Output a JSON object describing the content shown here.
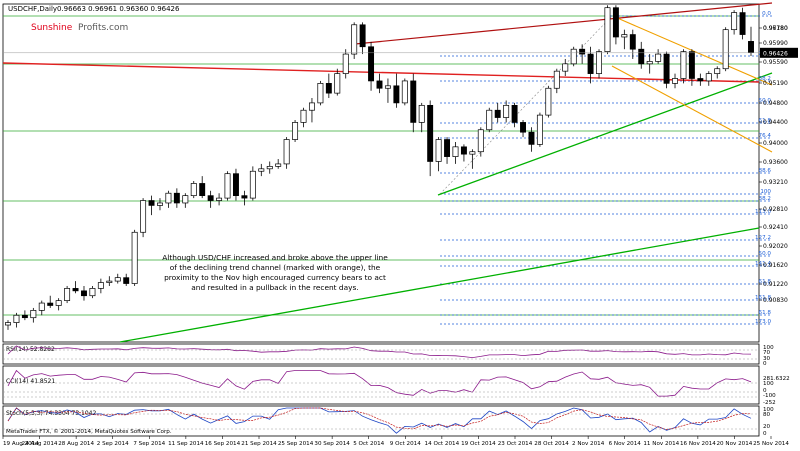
{
  "header": {
    "symbol": "USDCHF,Daily",
    "ohlc": "0.96663 0.96961 0.96360 0.96426",
    "brand_sunshine": "Sunshine",
    "brand_profits": "Profits.com"
  },
  "annotation": [
    "Although USD/CHF increased and broke above the upper line",
    "of the declining trend channel (marked with orange), the",
    "proximity to the Nov high encouraged currency bears to act",
    "and resulted in a pullback in the recent days."
  ],
  "footer": "MetaTrader FTX, © 2001-2014, MetaQuotes Software Corp.",
  "colors": {
    "bull": "#ffffff",
    "bear": "#000000",
    "support_green": "#00b000",
    "resistance_red": "#e02020",
    "upper_channel": "#b01010",
    "orange_channel": "#f0a000",
    "fib_blue": "#1f5fd6",
    "horizontal_green": "#33aa33",
    "indicator_line": "#8b1a8b",
    "current_price_bg": "#000000"
  },
  "chart_data": {
    "type": "candlestick",
    "price_axis": {
      "ylim": [
        0.9069,
        0.9775
      ],
      "ticks": [
        "0.97180",
        "0.96780",
        "0.96426",
        "0.95990",
        "0.95590",
        "0.95190",
        "0.94800",
        "0.94400",
        "0.94000",
        "0.93600",
        "0.93210",
        "0.92810",
        "0.92410",
        "0.92020",
        "0.91620",
        "0.91220",
        "0.90830"
      ],
      "current_price": "0.96426"
    },
    "x_labels": [
      "19 Aug 2014",
      "24 Aug 2014",
      "28 Aug 2014",
      "2 Sep 2014",
      "7 Sep 2014",
      "11 Sep 2014",
      "16 Sep 2014",
      "21 Sep 2014",
      "25 Sep 2014",
      "30 Sep 2014",
      "5 Oct 2014",
      "9 Oct 2014",
      "14 Oct 2014",
      "19 Oct 2014",
      "23 Oct 2014",
      "28 Oct 2014",
      "2 Nov 2014",
      "6 Nov 2014",
      "11 Nov 2014",
      "16 Nov 2014",
      "20 Nov 2014",
      "25 Nov 2014"
    ],
    "candles": [
      {
        "o": 0.9085,
        "h": 0.9095,
        "l": 0.9075,
        "c": 0.909
      },
      {
        "o": 0.909,
        "h": 0.911,
        "l": 0.908,
        "c": 0.9105
      },
      {
        "o": 0.9105,
        "h": 0.9115,
        "l": 0.9095,
        "c": 0.91
      },
      {
        "o": 0.91,
        "h": 0.912,
        "l": 0.909,
        "c": 0.9115
      },
      {
        "o": 0.9115,
        "h": 0.9135,
        "l": 0.9105,
        "c": 0.913
      },
      {
        "o": 0.913,
        "h": 0.9145,
        "l": 0.912,
        "c": 0.9125
      },
      {
        "o": 0.9125,
        "h": 0.914,
        "l": 0.9115,
        "c": 0.9135
      },
      {
        "o": 0.9135,
        "h": 0.9165,
        "l": 0.913,
        "c": 0.916
      },
      {
        "o": 0.916,
        "h": 0.9175,
        "l": 0.915,
        "c": 0.9155
      },
      {
        "o": 0.9155,
        "h": 0.9165,
        "l": 0.9135,
        "c": 0.9145
      },
      {
        "o": 0.9145,
        "h": 0.9165,
        "l": 0.914,
        "c": 0.916
      },
      {
        "o": 0.916,
        "h": 0.918,
        "l": 0.915,
        "c": 0.9172
      },
      {
        "o": 0.9172,
        "h": 0.9185,
        "l": 0.9165,
        "c": 0.9175
      },
      {
        "o": 0.9175,
        "h": 0.919,
        "l": 0.917,
        "c": 0.9182
      },
      {
        "o": 0.9182,
        "h": 0.919,
        "l": 0.9165,
        "c": 0.917
      },
      {
        "o": 0.917,
        "h": 0.928,
        "l": 0.9165,
        "c": 0.9275
      },
      {
        "o": 0.9275,
        "h": 0.9345,
        "l": 0.9265,
        "c": 0.934
      },
      {
        "o": 0.934,
        "h": 0.935,
        "l": 0.931,
        "c": 0.933
      },
      {
        "o": 0.933,
        "h": 0.9345,
        "l": 0.932,
        "c": 0.9335
      },
      {
        "o": 0.9335,
        "h": 0.936,
        "l": 0.9325,
        "c": 0.9355
      },
      {
        "o": 0.9355,
        "h": 0.9365,
        "l": 0.9325,
        "c": 0.9335
      },
      {
        "o": 0.9335,
        "h": 0.9355,
        "l": 0.9325,
        "c": 0.935
      },
      {
        "o": 0.935,
        "h": 0.938,
        "l": 0.9345,
        "c": 0.9375
      },
      {
        "o": 0.9375,
        "h": 0.939,
        "l": 0.9345,
        "c": 0.935
      },
      {
        "o": 0.935,
        "h": 0.936,
        "l": 0.9325,
        "c": 0.934
      },
      {
        "o": 0.934,
        "h": 0.9355,
        "l": 0.933,
        "c": 0.9345
      },
      {
        "o": 0.9345,
        "h": 0.94,
        "l": 0.934,
        "c": 0.9395
      },
      {
        "o": 0.9395,
        "h": 0.9405,
        "l": 0.934,
        "c": 0.935
      },
      {
        "o": 0.935,
        "h": 0.936,
        "l": 0.933,
        "c": 0.9345
      },
      {
        "o": 0.9345,
        "h": 0.941,
        "l": 0.934,
        "c": 0.94
      },
      {
        "o": 0.94,
        "h": 0.9415,
        "l": 0.939,
        "c": 0.9405
      },
      {
        "o": 0.9405,
        "h": 0.942,
        "l": 0.9395,
        "c": 0.941
      },
      {
        "o": 0.941,
        "h": 0.9425,
        "l": 0.9405,
        "c": 0.9415
      },
      {
        "o": 0.9415,
        "h": 0.947,
        "l": 0.9405,
        "c": 0.9465
      },
      {
        "o": 0.9465,
        "h": 0.9505,
        "l": 0.946,
        "c": 0.95
      },
      {
        "o": 0.95,
        "h": 0.953,
        "l": 0.949,
        "c": 0.9525
      },
      {
        "o": 0.9525,
        "h": 0.955,
        "l": 0.95,
        "c": 0.954
      },
      {
        "o": 0.954,
        "h": 0.9585,
        "l": 0.9535,
        "c": 0.958
      },
      {
        "o": 0.958,
        "h": 0.96,
        "l": 0.955,
        "c": 0.956
      },
      {
        "o": 0.956,
        "h": 0.961,
        "l": 0.9555,
        "c": 0.96
      },
      {
        "o": 0.96,
        "h": 0.965,
        "l": 0.959,
        "c": 0.964
      },
      {
        "o": 0.964,
        "h": 0.9705,
        "l": 0.963,
        "c": 0.97
      },
      {
        "o": 0.97,
        "h": 0.9705,
        "l": 0.964,
        "c": 0.9655
      },
      {
        "o": 0.9655,
        "h": 0.9665,
        "l": 0.9565,
        "c": 0.9585
      },
      {
        "o": 0.9585,
        "h": 0.96,
        "l": 0.956,
        "c": 0.957
      },
      {
        "o": 0.957,
        "h": 0.959,
        "l": 0.954,
        "c": 0.9575
      },
      {
        "o": 0.9575,
        "h": 0.96,
        "l": 0.953,
        "c": 0.954
      },
      {
        "o": 0.954,
        "h": 0.959,
        "l": 0.9535,
        "c": 0.9585
      },
      {
        "o": 0.9585,
        "h": 0.96,
        "l": 0.948,
        "c": 0.95
      },
      {
        "o": 0.95,
        "h": 0.954,
        "l": 0.948,
        "c": 0.9535
      },
      {
        "o": 0.9535,
        "h": 0.9545,
        "l": 0.939,
        "c": 0.942
      },
      {
        "o": 0.942,
        "h": 0.947,
        "l": 0.94,
        "c": 0.9465
      },
      {
        "o": 0.9465,
        "h": 0.947,
        "l": 0.9415,
        "c": 0.943
      },
      {
        "o": 0.943,
        "h": 0.946,
        "l": 0.9415,
        "c": 0.945
      },
      {
        "o": 0.945,
        "h": 0.9455,
        "l": 0.942,
        "c": 0.9435
      },
      {
        "o": 0.9435,
        "h": 0.9445,
        "l": 0.9405,
        "c": 0.944
      },
      {
        "o": 0.944,
        "h": 0.949,
        "l": 0.943,
        "c": 0.9485
      },
      {
        "o": 0.9485,
        "h": 0.953,
        "l": 0.948,
        "c": 0.9525
      },
      {
        "o": 0.9525,
        "h": 0.954,
        "l": 0.95,
        "c": 0.951
      },
      {
        "o": 0.951,
        "h": 0.9545,
        "l": 0.95,
        "c": 0.9535
      },
      {
        "o": 0.9535,
        "h": 0.954,
        "l": 0.949,
        "c": 0.95
      },
      {
        "o": 0.95,
        "h": 0.9505,
        "l": 0.947,
        "c": 0.948
      },
      {
        "o": 0.948,
        "h": 0.949,
        "l": 0.944,
        "c": 0.9455
      },
      {
        "o": 0.9455,
        "h": 0.952,
        "l": 0.945,
        "c": 0.9515
      },
      {
        "o": 0.9515,
        "h": 0.9575,
        "l": 0.951,
        "c": 0.957
      },
      {
        "o": 0.957,
        "h": 0.961,
        "l": 0.956,
        "c": 0.9605
      },
      {
        "o": 0.9605,
        "h": 0.963,
        "l": 0.9595,
        "c": 0.962
      },
      {
        "o": 0.962,
        "h": 0.9655,
        "l": 0.9615,
        "c": 0.965
      },
      {
        "o": 0.965,
        "h": 0.966,
        "l": 0.962,
        "c": 0.964
      },
      {
        "o": 0.964,
        "h": 0.9655,
        "l": 0.958,
        "c": 0.96
      },
      {
        "o": 0.96,
        "h": 0.965,
        "l": 0.959,
        "c": 0.9645
      },
      {
        "o": 0.9645,
        "h": 0.974,
        "l": 0.964,
        "c": 0.9735
      },
      {
        "o": 0.9735,
        "h": 0.974,
        "l": 0.966,
        "c": 0.9675
      },
      {
        "o": 0.9675,
        "h": 0.969,
        "l": 0.965,
        "c": 0.968
      },
      {
        "o": 0.968,
        "h": 0.969,
        "l": 0.963,
        "c": 0.965
      },
      {
        "o": 0.965,
        "h": 0.9665,
        "l": 0.961,
        "c": 0.962
      },
      {
        "o": 0.962,
        "h": 0.964,
        "l": 0.96,
        "c": 0.9625
      },
      {
        "o": 0.9625,
        "h": 0.965,
        "l": 0.962,
        "c": 0.964
      },
      {
        "o": 0.964,
        "h": 0.9645,
        "l": 0.957,
        "c": 0.958
      },
      {
        "o": 0.958,
        "h": 0.96,
        "l": 0.957,
        "c": 0.959
      },
      {
        "o": 0.959,
        "h": 0.965,
        "l": 0.958,
        "c": 0.9645
      },
      {
        "o": 0.9645,
        "h": 0.965,
        "l": 0.9575,
        "c": 0.959
      },
      {
        "o": 0.959,
        "h": 0.96,
        "l": 0.9575,
        "c": 0.9585
      },
      {
        "o": 0.9585,
        "h": 0.9605,
        "l": 0.9575,
        "c": 0.96
      },
      {
        "o": 0.96,
        "h": 0.9615,
        "l": 0.959,
        "c": 0.961
      },
      {
        "o": 0.961,
        "h": 0.9695,
        "l": 0.9605,
        "c": 0.969
      },
      {
        "o": 0.969,
        "h": 0.973,
        "l": 0.968,
        "c": 0.9725
      },
      {
        "o": 0.9725,
        "h": 0.9735,
        "l": 0.967,
        "c": 0.968
      },
      {
        "o": 0.9666,
        "h": 0.9696,
        "l": 0.9636,
        "c": 0.9643
      }
    ],
    "fib_levels": [
      "0.0",
      "23.6",
      "38.2",
      "50.0",
      "61.8",
      "76.4",
      "88.6",
      "100",
      "38.2",
      "113.0",
      "127.2",
      "50.0",
      "141.4",
      "61.8",
      "161.8",
      "61.8",
      "173.0"
    ],
    "rsi": {
      "label": "RSI(14) 52.8282",
      "ticks": [
        "100",
        "70",
        "30",
        "0"
      ]
    },
    "cci": {
      "label": "CCI(14) 41.8521",
      "ticks": [
        "281.6322",
        "100",
        "0",
        "-100",
        "-252"
      ]
    },
    "stoch": {
      "label": "Stoch(5,3,3) 74.3304 73.1042",
      "ticks": [
        "100",
        "80",
        "20",
        "0"
      ]
    }
  }
}
